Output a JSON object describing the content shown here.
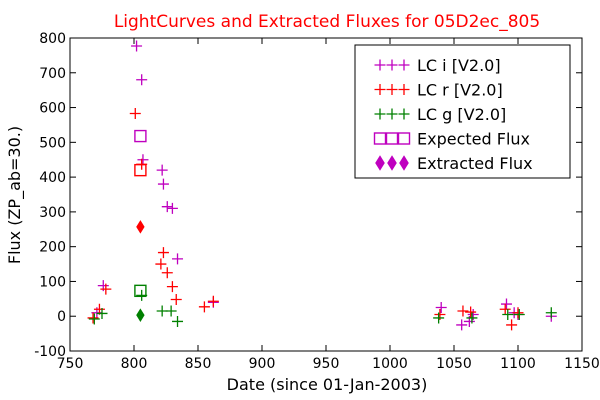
{
  "chart_data": {
    "type": "scatter",
    "title": "LightCurves and Extracted Fluxes for 05D2ec_805",
    "xlabel": "Date (since 01-Jan-2003)",
    "ylabel": "Flux (ZP_ab=30.)",
    "xlim": [
      750,
      1150
    ],
    "ylim": [
      -100,
      800
    ],
    "xticks": [
      750,
      800,
      850,
      900,
      950,
      1000,
      1050,
      1100,
      1150
    ],
    "yticks": [
      -100,
      0,
      100,
      200,
      300,
      400,
      500,
      600,
      700,
      800
    ],
    "legend_position": "top-right",
    "legend_marker_glyph": "+++",
    "colors": {
      "title": "#ff0000",
      "lc_i": "#bf00bf",
      "lc_r": "#ff0000",
      "lc_g": "#008000",
      "expected": "#bf00bf",
      "extracted": "#bf00bf"
    },
    "series": [
      {
        "name": "LC i [V2.0]",
        "marker": "plus",
        "color": "#bf00bf",
        "points": [
          [
            771,
            10
          ],
          [
            776,
            88
          ],
          [
            802,
            777
          ],
          [
            806,
            680
          ],
          [
            807,
            450
          ],
          [
            822,
            420
          ],
          [
            823,
            380
          ],
          [
            826,
            315
          ],
          [
            830,
            310
          ],
          [
            834,
            165
          ],
          [
            862,
            40
          ],
          [
            1040,
            25
          ],
          [
            1056,
            -25
          ],
          [
            1062,
            -15
          ],
          [
            1065,
            5
          ],
          [
            1091,
            35
          ],
          [
            1097,
            10
          ],
          [
            1100,
            5
          ],
          [
            1126,
            0
          ]
        ]
      },
      {
        "name": "LC r [V2.0]",
        "marker": "plus",
        "color": "#ff0000",
        "points": [
          [
            768,
            -5
          ],
          [
            773,
            20
          ],
          [
            778,
            78
          ],
          [
            801,
            583
          ],
          [
            806,
            437
          ],
          [
            821,
            150
          ],
          [
            823,
            183
          ],
          [
            826,
            125
          ],
          [
            830,
            85
          ],
          [
            833,
            48
          ],
          [
            855,
            27
          ],
          [
            862,
            43
          ],
          [
            1039,
            5
          ],
          [
            1057,
            15
          ],
          [
            1063,
            12
          ],
          [
            1090,
            20
          ],
          [
            1095,
            -25
          ],
          [
            1100,
            10
          ]
        ]
      },
      {
        "name": "LC g [V2.0]",
        "marker": "plus",
        "color": "#008000",
        "points": [
          [
            769,
            -8
          ],
          [
            775,
            8
          ],
          [
            806,
            60
          ],
          [
            822,
            15
          ],
          [
            829,
            15
          ],
          [
            834,
            -15
          ],
          [
            1038,
            -5
          ],
          [
            1064,
            -5
          ],
          [
            1092,
            5
          ],
          [
            1101,
            5
          ],
          [
            1126,
            10
          ]
        ]
      },
      {
        "name": "Expected Flux",
        "marker": "square",
        "points": [
          {
            "x": 805,
            "y": 518,
            "color": "#bf00bf"
          },
          {
            "x": 805,
            "y": 420,
            "color": "#ff0000"
          },
          {
            "x": 805,
            "y": 73,
            "color": "#008000"
          }
        ]
      },
      {
        "name": "Extracted Flux",
        "marker": "diamond",
        "points": [
          {
            "x": 805,
            "y": 257,
            "color": "#ff0000"
          },
          {
            "x": 805,
            "y": 3,
            "color": "#008000"
          }
        ]
      }
    ]
  }
}
